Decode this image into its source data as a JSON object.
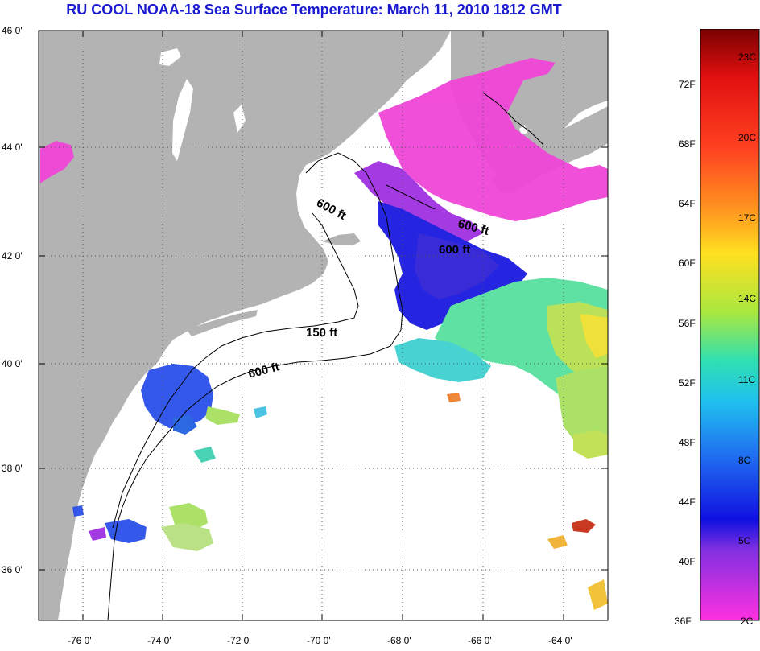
{
  "title": "RU COOL  NOAA-18  Sea Surface Temperature:  March 11, 2010 1812 GMT",
  "latitude_labels": [
    "46 0'",
    "44 0'",
    "42 0'",
    "40 0'",
    "38 0'",
    "36 0'"
  ],
  "longitude_labels": [
    "-76 0'",
    "-74 0'",
    "-72 0'",
    "-70 0'",
    "-68 0'",
    "-66 0'",
    "-64 0'"
  ],
  "bathymetry_labels": [
    "600 ft",
    "600 ft",
    "600 ft",
    "150 ft",
    "600 ft"
  ],
  "colorbar": {
    "fahrenheit_labels": [
      "72F",
      "68F",
      "64F",
      "60F",
      "56F",
      "52F",
      "48F",
      "44F",
      "40F",
      "36F"
    ],
    "celsius_labels": [
      "23C",
      "20C",
      "17C",
      "14C",
      "11C",
      "8C",
      "5C",
      "2C"
    ]
  },
  "colors": {
    "title": "#1a1ad0",
    "land": "#b3b3b3",
    "ocean_no_data": "#ffffff",
    "cold": "#ff40d0",
    "warm": "#8b0000"
  }
}
